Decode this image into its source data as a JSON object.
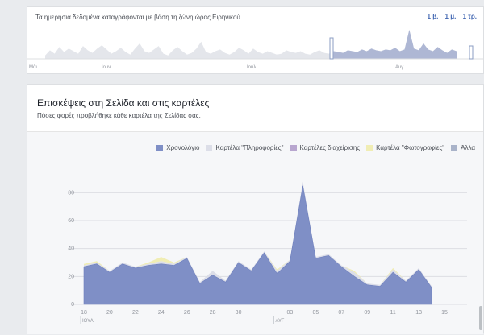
{
  "top_bar": {
    "timezone_note": "Τα ημερήσια δεδομένα καταγράφονται με βάση τη ζώνη ώρας Ειρηνικού.",
    "ranges": [
      "1 β.",
      "1 μ.",
      "1 τρ."
    ],
    "axis_labels": [
      "Μάι",
      "Ιουν",
      "Ιουλ",
      "Αυγ"
    ]
  },
  "main": {
    "title": "Επισκέψεις στη Σελίδα και στις καρτέλες",
    "subtitle": "Πόσες φορές προβλήθηκε κάθε καρτέλα της Σελίδας σας."
  },
  "colors": {
    "timeline": "#7f8fc6",
    "info": "#dcdee8",
    "admin": "#b8a6cf",
    "photos": "#f0edb4",
    "other": "#a9b3c9"
  },
  "chart_data": {
    "type": "area",
    "legend": [
      "Χρονολόγιο",
      "Καρτέλα \"Πληροφορίες\"",
      "Καρτέλες διαχείρισης",
      "Καρτέλα \"Φωτογραφίες\"",
      "Άλλα"
    ],
    "x": [
      "18",
      "19",
      "20",
      "21",
      "22",
      "23",
      "24",
      "25",
      "26",
      "27",
      "28",
      "29",
      "30",
      "31",
      "01",
      "02",
      "03",
      "04",
      "05",
      "06",
      "07",
      "08",
      "09",
      "10",
      "11",
      "12",
      "13",
      "14"
    ],
    "x_tick_labels": [
      "18",
      "20",
      "22",
      "24",
      "26",
      "28",
      "30",
      "",
      "03",
      "05",
      "07",
      "09",
      "11",
      "13",
      "15"
    ],
    "month_labels": [
      "ΙΟΥΛ",
      "ΑΥΓ"
    ],
    "series": [
      {
        "name": "Χρονολόγιο",
        "values": [
          27,
          29,
          23,
          29,
          26,
          28,
          29,
          28,
          33,
          15,
          21,
          16,
          30,
          24,
          37,
          22,
          31,
          85,
          33,
          35,
          27,
          20,
          14,
          13,
          23,
          16,
          25,
          12
        ]
      },
      {
        "name": "Καρτέλα \"Πληροφορίες\"",
        "values": [
          1,
          1,
          1,
          1,
          1,
          1,
          2,
          1,
          1,
          1,
          3,
          1,
          1,
          1,
          1,
          2,
          1,
          3,
          1,
          1,
          1,
          3,
          1,
          1,
          2,
          1,
          1,
          1
        ]
      },
      {
        "name": "Καρτέλες διαχείρισης",
        "values": [
          0,
          0,
          0,
          0,
          0,
          0,
          0,
          0,
          0,
          0,
          0,
          0,
          0,
          0,
          0,
          0,
          0,
          0,
          0,
          0,
          0,
          0,
          0,
          0,
          0,
          0,
          0,
          0
        ]
      },
      {
        "name": "Καρτέλα \"Φωτογραφίες\"",
        "values": [
          1,
          1,
          0,
          0,
          0,
          1,
          3,
          1,
          0,
          0,
          0,
          0,
          0,
          0,
          0,
          1,
          0,
          0,
          0,
          0,
          0,
          1,
          0,
          0,
          1,
          0,
          0,
          0
        ]
      },
      {
        "name": "Άλλα",
        "values": [
          0,
          0,
          0,
          0,
          0,
          0,
          0,
          0,
          0,
          0,
          0,
          0,
          0,
          0,
          0,
          0,
          0,
          0,
          0,
          0,
          0,
          0,
          0,
          0,
          0,
          0,
          0,
          0
        ]
      }
    ],
    "ylim": [
      0,
      90
    ],
    "y_ticks": [
      0,
      20,
      40,
      60,
      80
    ]
  },
  "overview": {
    "values": [
      4,
      10,
      6,
      14,
      8,
      12,
      9,
      6,
      15,
      10,
      7,
      12,
      16,
      11,
      6,
      9,
      13,
      8,
      5,
      12,
      18,
      9,
      7,
      11,
      15,
      6,
      4,
      10,
      14,
      9,
      5,
      7,
      12,
      20,
      8,
      6,
      9,
      11,
      7,
      5,
      8,
      13,
      10,
      6,
      12,
      8,
      6,
      9,
      7,
      5,
      6,
      10,
      8,
      7,
      9,
      6,
      5,
      8,
      10,
      7,
      6,
      9,
      8,
      7,
      10,
      9,
      8,
      11,
      9,
      12,
      10,
      9,
      11,
      10,
      13,
      9,
      11,
      34,
      12,
      10,
      18,
      11,
      9,
      14,
      10,
      7,
      11,
      9
    ]
  }
}
